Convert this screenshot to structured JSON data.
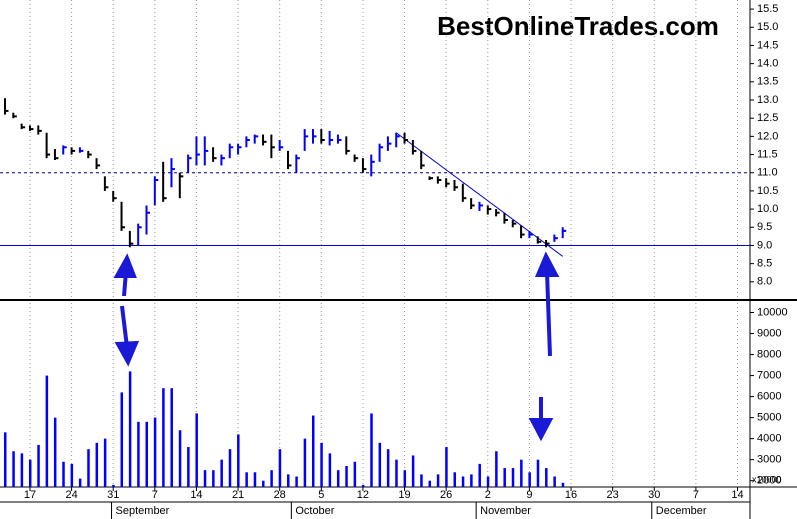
{
  "chart_data": {
    "type": "ohlc",
    "title": "BestOnlineTrades.com",
    "up_color": "#0000ff",
    "down_color": "#000000",
    "high": [
      13.05,
      12.65,
      12.35,
      12.3,
      12.3,
      12.1,
      11.65,
      11.75,
      11.7,
      11.7,
      11.6,
      11.4,
      10.9,
      10.5,
      10.2,
      9.4,
      9.6,
      10.1,
      10.9,
      11.3,
      11.4,
      11.0,
      11.5,
      12.0,
      12.0,
      11.7,
      11.5,
      11.8,
      11.8,
      12.0,
      12.05,
      12.05,
      12.05,
      11.9,
      11.6,
      11.5,
      12.2,
      12.2,
      12.2,
      12.15,
      12.05,
      12.0,
      11.5,
      11.4,
      11.5,
      11.8,
      12.0,
      12.1,
      12.1,
      11.9,
      11.6,
      10.9,
      10.9,
      10.85,
      10.8,
      10.7,
      10.3,
      10.2,
      10.1,
      10.0,
      9.9,
      9.7,
      9.55,
      9.4,
      9.25,
      9.15,
      9.3,
      9.5
    ],
    "low": [
      12.6,
      12.5,
      12.2,
      12.15,
      12.05,
      11.4,
      11.35,
      11.5,
      11.5,
      11.55,
      11.4,
      11.1,
      10.5,
      10.2,
      9.4,
      8.95,
      9.0,
      9.3,
      10.1,
      10.2,
      10.6,
      10.3,
      11.0,
      11.2,
      11.2,
      11.3,
      11.2,
      11.4,
      11.5,
      11.7,
      11.8,
      11.75,
      11.4,
      11.6,
      11.1,
      11.0,
      11.6,
      11.8,
      11.8,
      11.75,
      11.8,
      11.5,
      11.3,
      11.0,
      10.9,
      11.3,
      11.6,
      11.7,
      11.8,
      11.5,
      11.1,
      10.8,
      10.7,
      10.6,
      10.5,
      10.2,
      10.0,
      9.95,
      9.85,
      9.8,
      9.6,
      9.5,
      9.2,
      9.2,
      9.05,
      8.95,
      9.1,
      9.2
    ],
    "close": [
      12.7,
      12.55,
      12.25,
      12.2,
      12.15,
      11.5,
      11.4,
      11.7,
      11.6,
      11.6,
      11.5,
      11.2,
      10.6,
      10.3,
      9.5,
      9.05,
      9.5,
      9.9,
      10.8,
      10.3,
      11.1,
      10.9,
      11.4,
      11.5,
      11.6,
      11.4,
      11.4,
      11.7,
      11.7,
      11.9,
      12.0,
      11.85,
      11.7,
      11.7,
      11.2,
      11.4,
      12.0,
      12.0,
      11.9,
      11.9,
      11.9,
      11.6,
      11.4,
      11.1,
      11.3,
      11.7,
      11.8,
      12.0,
      11.9,
      11.6,
      11.2,
      10.85,
      10.8,
      10.7,
      10.6,
      10.3,
      10.1,
      10.1,
      10.0,
      9.9,
      9.7,
      9.6,
      9.3,
      9.3,
      9.1,
      9.05,
      9.2,
      9.4
    ],
    "volume": [
      4300,
      3400,
      3300,
      3000,
      3700,
      7000,
      5000,
      2900,
      2800,
      2100,
      3500,
      3800,
      4000,
      1800,
      6200,
      7200,
      4800,
      4800,
      5000,
      6400,
      6400,
      4400,
      3600,
      5200,
      2500,
      2500,
      3000,
      3500,
      4200,
      2400,
      2400,
      2000,
      2500,
      3500,
      2300,
      2200,
      4000,
      5100,
      3800,
      3300,
      2500,
      2700,
      2900,
      1800,
      5200,
      3800,
      3500,
      3000,
      2500,
      3200,
      2300,
      2000,
      2300,
      3600,
      2400,
      2200,
      2300,
      2800,
      2200,
      3400,
      2600,
      2600,
      3000,
      2400,
      3000,
      2600,
      2200,
      1900
    ],
    "volume_color": "#0000ff",
    "volume_unit": "x10000",
    "xlim": [
      -0.6,
      89.5
    ],
    "xticks": [
      {
        "value": 3,
        "label": "17"
      },
      {
        "value": 8,
        "label": "24"
      },
      {
        "value": 13,
        "label": "31"
      },
      {
        "value": 18,
        "label": "7"
      },
      {
        "value": 23,
        "label": "14"
      },
      {
        "value": 28,
        "label": "21"
      },
      {
        "value": 33,
        "label": "28"
      },
      {
        "value": 38,
        "label": "5"
      },
      {
        "value": 43,
        "label": "12"
      },
      {
        "value": 48,
        "label": "19"
      },
      {
        "value": 53,
        "label": "26"
      },
      {
        "value": 58,
        "label": "2"
      },
      {
        "value": 63,
        "label": "9"
      },
      {
        "value": 68,
        "label": "16"
      },
      {
        "value": 73,
        "label": "23"
      },
      {
        "value": 78,
        "label": "30"
      },
      {
        "value": 83,
        "label": "7"
      },
      {
        "value": 88,
        "label": "14"
      }
    ],
    "month_ticks": [
      {
        "value": 12.8,
        "label": "September"
      },
      {
        "value": 34.4,
        "label": "October"
      },
      {
        "value": 56.6,
        "label": "November"
      },
      {
        "value": 77.7,
        "label": "December"
      }
    ],
    "ylim": [
      7.5,
      15.75
    ],
    "yticks": [
      {
        "value": 8,
        "label": "8.0"
      },
      8.5,
      {
        "value": 9,
        "label": "9.0"
      },
      9.5,
      {
        "value": 10,
        "label": "10.0"
      },
      10.5,
      {
        "value": 11,
        "label": "11.0"
      },
      11.5,
      {
        "value": 12,
        "label": "12.0"
      },
      12.5,
      {
        "value": 13,
        "label": "13.0"
      },
      13.5,
      {
        "value": 14,
        "label": "14.0"
      },
      14.5,
      {
        "value": 15,
        "label": "15.0"
      },
      15.5
    ],
    "y2lim": [
      1700,
      10500
    ],
    "y2ticks": [
      2000,
      3000,
      4000,
      5000,
      6000,
      7000,
      8000,
      9000,
      10000
    ],
    "hlines": [
      {
        "value": 11,
        "color": "#00008b",
        "dashed": true
      },
      {
        "value": 9,
        "color": "#0000cd",
        "dashed": false
      }
    ],
    "trendline": {
      "x": [
        47,
        67
      ],
      "y": [
        12.1,
        8.7
      ],
      "color": "#0000cd"
    },
    "grid": true
  }
}
